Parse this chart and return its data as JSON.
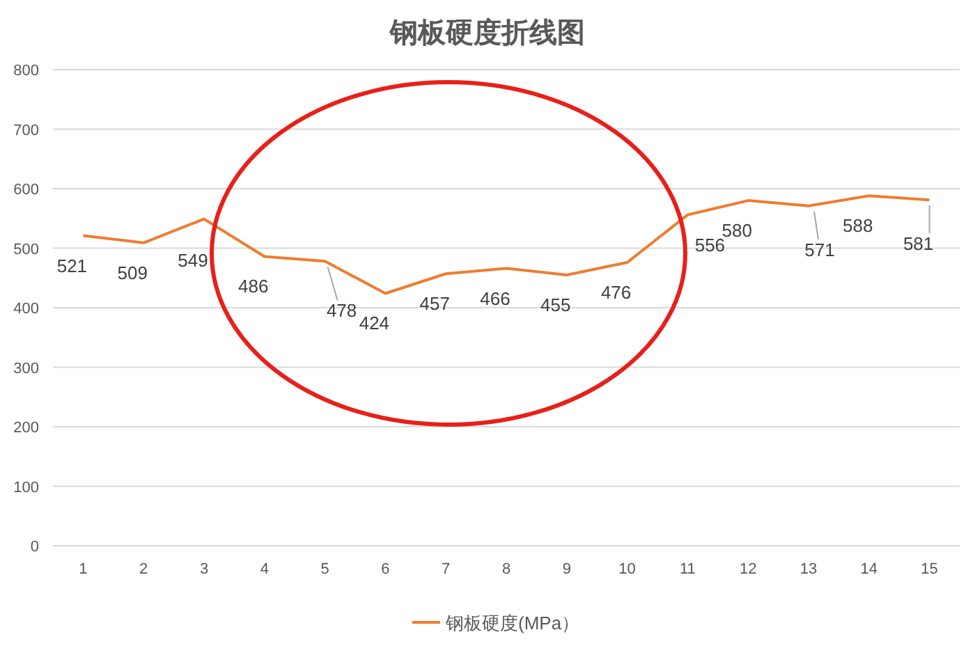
{
  "chart_data": {
    "type": "line",
    "title": "钢板硬度折线图",
    "categories": [
      "1",
      "2",
      "3",
      "4",
      "5",
      "6",
      "7",
      "8",
      "9",
      "10",
      "11",
      "12",
      "13",
      "14",
      "15"
    ],
    "series": [
      {
        "name": "钢板硬度(MPa）",
        "color": "#ed7d31",
        "values": [
          521,
          509,
          549,
          486,
          478,
          424,
          457,
          466,
          455,
          476,
          556,
          580,
          571,
          588,
          581
        ]
      }
    ],
    "ylim": [
      0,
      800
    ],
    "yticks": [
      0,
      100,
      200,
      300,
      400,
      500,
      600,
      700,
      800
    ],
    "grid": "y",
    "legend": "bottom",
    "data_labels": true
  }
}
